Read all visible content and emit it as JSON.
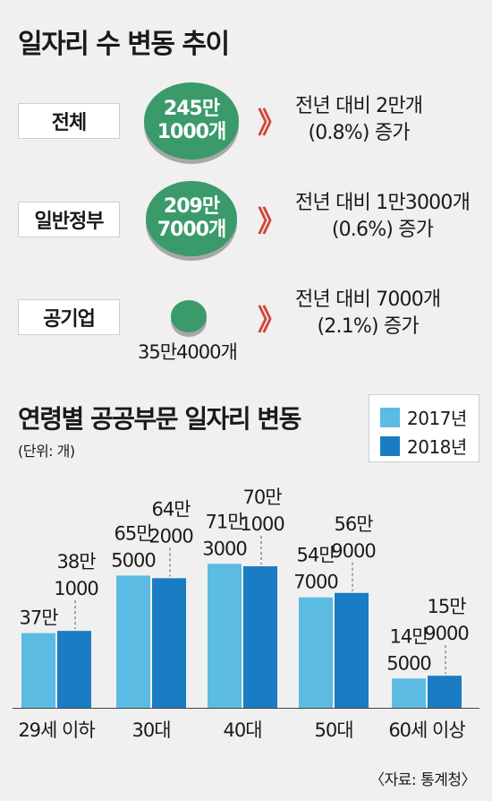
{
  "top": {
    "title": "일자리 수 변동 추이",
    "rows": [
      {
        "label": "전체",
        "value_line1": "245만",
        "value_line2": "1000개",
        "arrow": "》",
        "desc_line1": "전년 대비 2만개",
        "desc_line2": "(0.8%) 증가"
      },
      {
        "label": "일반정부",
        "value_line1": "209만",
        "value_line2": "7000개",
        "arrow": "》",
        "desc_line1": "전년 대비 1만3000개",
        "desc_line2": "(0.6%) 증가"
      },
      {
        "label": "공기업",
        "value_line1": "35만4000개",
        "value_line2": "",
        "arrow": "》",
        "desc_line1": "전년 대비 7000개",
        "desc_line2": "(2.1%) 증가"
      }
    ]
  },
  "bottom": {
    "title": "연령별 공공부문 일자리 변동",
    "unit": "(단위: 개)",
    "source": "〈자료: 통계청〉"
  },
  "colors": {
    "series_2017": "#5bbbe3",
    "series_2018": "#1a7cc2",
    "circle": "#3a9a6a",
    "arrow": "#d2453a"
  },
  "chart_data": {
    "type": "bar",
    "categories": [
      "29세 이하",
      "30대",
      "40대",
      "50대",
      "60세 이상"
    ],
    "series": [
      {
        "name": "2017년",
        "values": [
          370000,
          655000,
          713000,
          547000,
          145000
        ],
        "labels": [
          [
            "37만"
          ],
          [
            "65만",
            "5000"
          ],
          [
            "71만",
            "3000"
          ],
          [
            "54만",
            "7000"
          ],
          [
            "14만",
            "5000"
          ]
        ]
      },
      {
        "name": "2018년",
        "values": [
          381000,
          642000,
          701000,
          569000,
          159000
        ],
        "labels": [
          [
            "38만",
            "1000"
          ],
          [
            "64만",
            "2000"
          ],
          [
            "70만",
            "1000"
          ],
          [
            "56만",
            "9000"
          ],
          [
            "15만",
            "9000"
          ]
        ]
      }
    ],
    "title": "연령별 공공부문 일자리 변동",
    "ylabel": "(단위: 개)",
    "legend": "top-right"
  }
}
